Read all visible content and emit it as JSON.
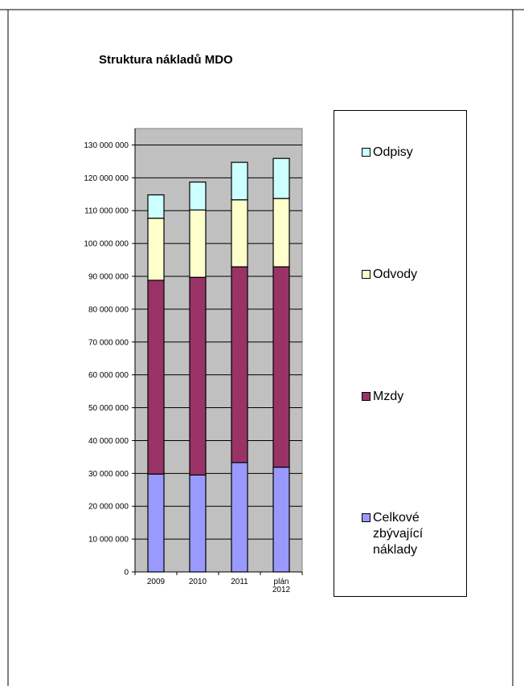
{
  "chart_data": {
    "type": "bar",
    "stacked": true,
    "title": "Struktura nákladů MDO",
    "categories": [
      [
        "2009"
      ],
      [
        "2010"
      ],
      [
        "2011"
      ],
      [
        "plán",
        "2012"
      ]
    ],
    "series": [
      {
        "name": "Celkové\nzbývající\nnáklady",
        "color": "#9999ff",
        "values": [
          29800000,
          29500000,
          33300000,
          31900000
        ]
      },
      {
        "name": "Mzdy",
        "color": "#993366",
        "values": [
          59000000,
          60200000,
          59600000,
          61000000
        ]
      },
      {
        "name": "Odvody",
        "color": "#ffffcc",
        "values": [
          18900000,
          20500000,
          20400000,
          20800000
        ]
      },
      {
        "name": "Odpisy",
        "color": "#ccffff",
        "values": [
          7100000,
          8500000,
          11400000,
          12200000
        ]
      }
    ],
    "y_ticks": [
      "0",
      "10 000 000",
      "20 000 000",
      "30 000 000",
      "40 000 000",
      "50 000 000",
      "60 000 000",
      "70 000 000",
      "80 000 000",
      "90 000 000",
      "100 000 000",
      "110 000 000",
      "120 000 000",
      "130 000 000"
    ],
    "ylim": [
      0,
      135000000
    ],
    "y_step": 10000000,
    "grid": true,
    "plot_background": "#c0c0c0",
    "legend_placement": "right",
    "legend_order": [
      "Odpisy",
      "Odvody",
      "Mzdy",
      "Celkové\nzbývající\nnáklady"
    ]
  }
}
